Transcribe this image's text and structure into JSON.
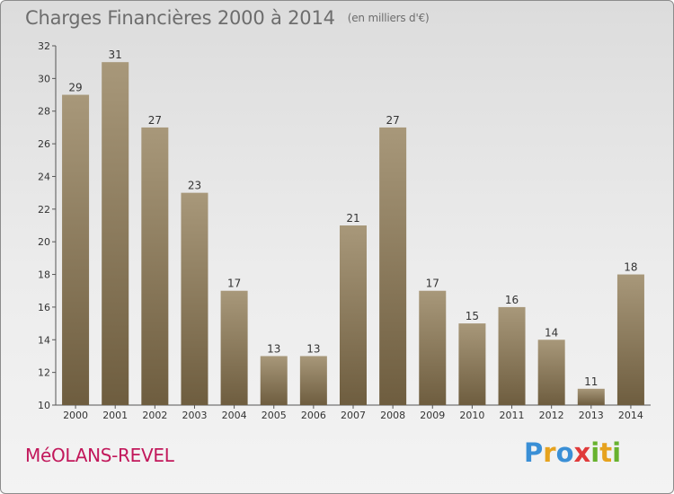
{
  "title": "Charges Financières 2000 à 2014",
  "subtitle": "(en milliers d'€)",
  "place": "MéOLANS-REVEL",
  "logo": {
    "text": "Proxiti",
    "letters": [
      {
        "ch": "P",
        "color": "#3a8fd6"
      },
      {
        "ch": "r",
        "color": "#e6a21e"
      },
      {
        "ch": "o",
        "color": "#3a8fd6"
      },
      {
        "ch": "x",
        "color": "#e03a3a"
      },
      {
        "ch": "i",
        "color": "#68b22e"
      },
      {
        "ch": "t",
        "color": "#e6a21e"
      },
      {
        "ch": "i",
        "color": "#68b22e"
      }
    ]
  },
  "colors": {
    "bar_top": "#a8987a",
    "bar_bottom": "#6e5d3f",
    "place": "#c2185b",
    "text": "#6d6d6d"
  },
  "chart_data": {
    "type": "bar",
    "categories": [
      "2000",
      "2001",
      "2002",
      "2003",
      "2004",
      "2005",
      "2006",
      "2007",
      "2008",
      "2009",
      "2010",
      "2011",
      "2012",
      "2013",
      "2014"
    ],
    "values": [
      29,
      31,
      27,
      23,
      17,
      13,
      13,
      21,
      27,
      17,
      15,
      16,
      14,
      11,
      18
    ],
    "title": "Charges Financières 2000 à 2014",
    "subtitle": "(en milliers d'€)",
    "ylim": [
      10,
      32
    ],
    "yticks": [
      10,
      12,
      14,
      16,
      18,
      20,
      22,
      24,
      26,
      28,
      30,
      32
    ],
    "grid": false,
    "legend": "none"
  }
}
